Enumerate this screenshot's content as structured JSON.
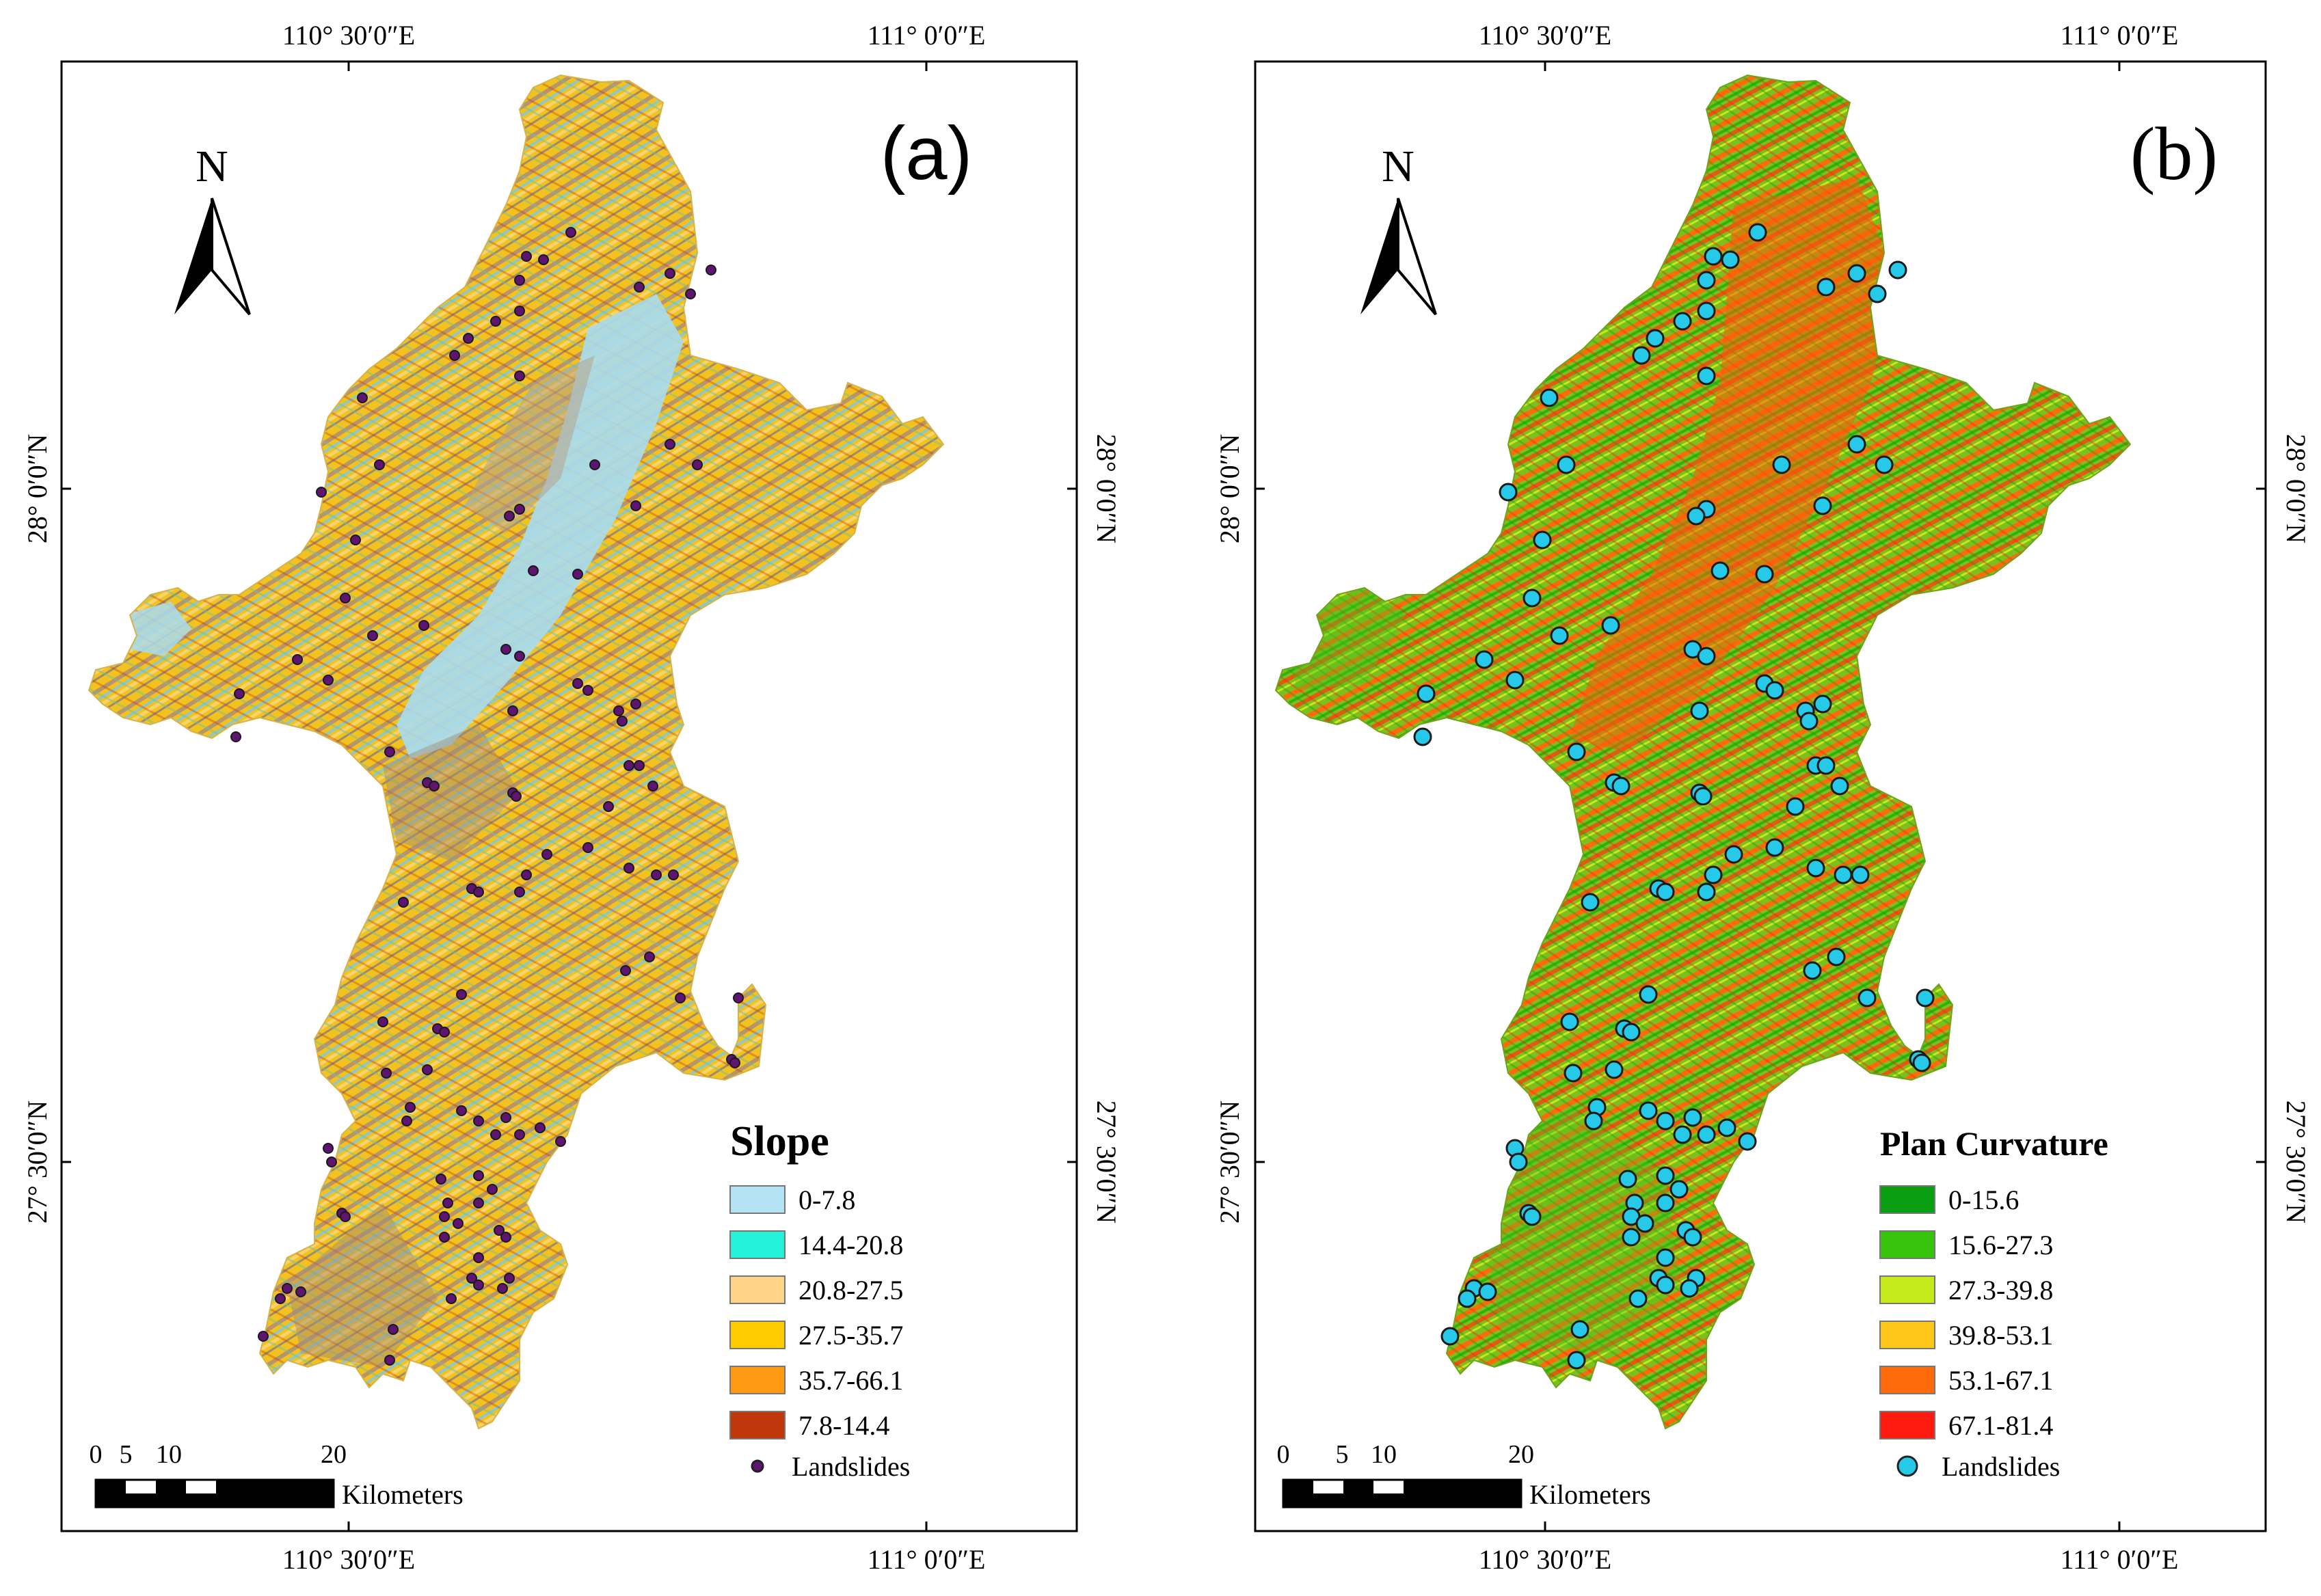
{
  "panel_a": {
    "label": "(a)",
    "north": "N",
    "coords": {
      "top_left": "110° 30′0″E",
      "top_right": "111° 0′0″E",
      "bottom_left": "110° 30′0″E",
      "bottom_right": "111° 0′0″E",
      "left_upper": "28° 0′0″N",
      "left_lower": "27° 30′0″N",
      "right_upper": "28° 0′0″N",
      "right_lower": "27° 30′0″N"
    },
    "scale": {
      "ticks": [
        "0",
        "5",
        "10",
        "20"
      ],
      "unit": "Kilometers"
    },
    "legend": {
      "title": "Slope",
      "items": [
        {
          "label": "0-7.8",
          "color": "#b3e3f5"
        },
        {
          "label": "14.4-20.8",
          "color": "#24f2d8"
        },
        {
          "label": "20.8-27.5",
          "color": "#ffd58a"
        },
        {
          "label": "27.5-35.7",
          "color": "#ffcc00"
        },
        {
          "label": "35.7-66.1",
          "color": "#ff9a14"
        },
        {
          "label": "7.8-14.4",
          "color": "#c0370c"
        }
      ],
      "point_label": "Landslides",
      "point_color": "#5e1470"
    }
  },
  "panel_b": {
    "label": "(b)",
    "north": "N",
    "coords": {
      "top_left": "110° 30′0″E",
      "top_right": "111° 0′0″E",
      "bottom_left": "110° 30′0″E",
      "bottom_right": "111° 0′0″E",
      "left_upper": "28° 0′0″N",
      "left_lower": "27° 30′0″N",
      "right_upper": "28° 0′0″N",
      "right_lower": "27° 30′0″N"
    },
    "scale": {
      "ticks": [
        "0",
        "5",
        "10",
        "20"
      ],
      "unit": "Kilometers"
    },
    "legend": {
      "title": "Plan Curvature",
      "items": [
        {
          "label": "0-15.6",
          "color": "#0a9e12"
        },
        {
          "label": "15.6-27.3",
          "color": "#38c40c"
        },
        {
          "label": "27.3-39.8",
          "color": "#c6ea1a"
        },
        {
          "label": "39.8-53.1",
          "color": "#ffc61a"
        },
        {
          "label": "53.1-67.1",
          "color": "#ff6a0a"
        },
        {
          "label": "67.1-81.4",
          "color": "#ff1a10"
        }
      ],
      "point_label": "Landslides",
      "point_color": "#27c9e8"
    }
  }
}
